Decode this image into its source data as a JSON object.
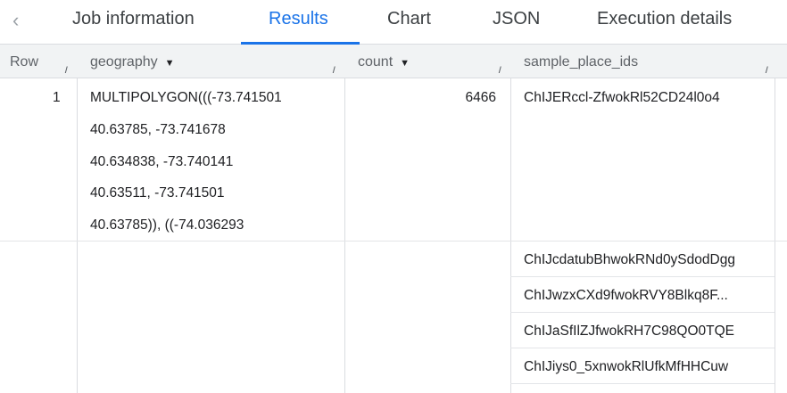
{
  "tabs": {
    "back_icon": "chevron-left-icon",
    "items": [
      {
        "label": "Job information"
      },
      {
        "label": "Results"
      },
      {
        "label": "Chart"
      },
      {
        "label": "JSON"
      },
      {
        "label": "Execution details"
      }
    ],
    "active": "Results"
  },
  "columns": [
    {
      "label": "Row"
    },
    {
      "label": "geography"
    },
    {
      "label": "count"
    },
    {
      "label": "sample_place_ids"
    }
  ],
  "rows": [
    {
      "row": "1",
      "geography_lines": [
        "MULTIPOLYGON(((-73.741501",
        "40.63785, -73.741678",
        "40.634838, -73.740141",
        "40.63511, -73.741501",
        "40.63785)), ((-74.036293"
      ],
      "count": "6466",
      "sample_place_ids": [
        "ChIJERccl-ZfwokRl52CD24l0o4",
        "ChIJcdatubBhwokRNd0ySdodDgg",
        "ChIJwzxCXd9fwokRVY8Blkq8F...",
        "ChIJaSfIlZJfwokRH7C98QO0TQE",
        "ChIJiys0_5xnwokRlUfkMfHHCuw"
      ]
    }
  ],
  "colors": {
    "accent": "#1a73e8",
    "header_bg": "#f1f3f4"
  }
}
